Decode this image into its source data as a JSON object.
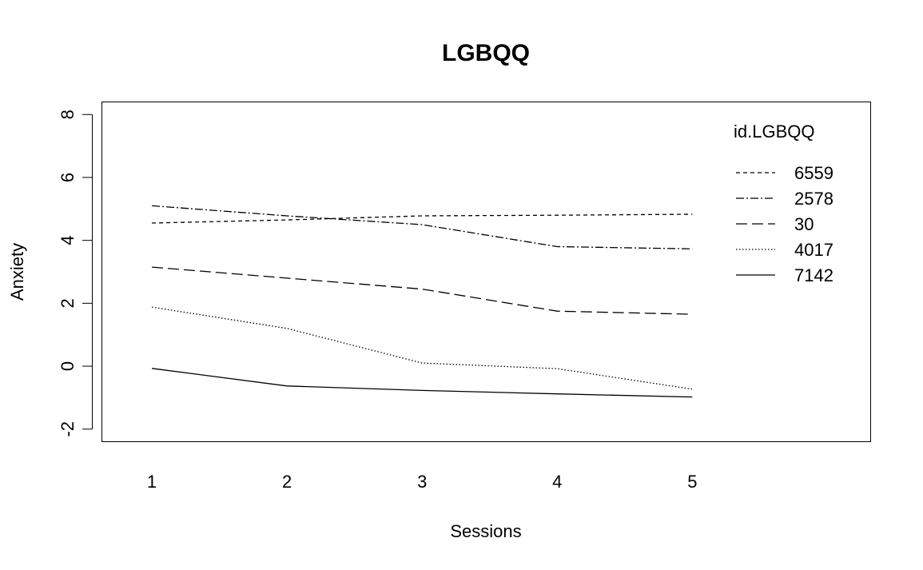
{
  "chart_data": {
    "type": "line",
    "title": "LGBQQ",
    "xlabel": "Sessions",
    "ylabel": "Anxiety",
    "x": [
      1,
      2,
      3,
      4,
      5
    ],
    "x_tick_labels": [
      "1",
      "2",
      "3",
      "4",
      "5"
    ],
    "y_ticks": [
      -2,
      0,
      2,
      4,
      6,
      8
    ],
    "y_tick_labels": [
      "-2",
      "0",
      "2",
      "4",
      "6",
      "8"
    ],
    "xlim": [
      0.63,
      6.32
    ],
    "ylim": [
      -2.4,
      8.4
    ],
    "grid": false,
    "legend": {
      "title": "id.LGBQQ",
      "position": "top-right"
    },
    "series": [
      {
        "name": "6559",
        "dash": "5,4",
        "values": [
          4.55,
          4.65,
          4.78,
          4.8,
          4.83
        ]
      },
      {
        "name": "2578",
        "dash": "10,3,2,3",
        "values": [
          5.1,
          4.78,
          4.5,
          3.8,
          3.73
        ]
      },
      {
        "name": "30",
        "dash": "14,6",
        "values": [
          3.15,
          2.8,
          2.45,
          1.75,
          1.65
        ]
      },
      {
        "name": "4017",
        "dash": "1.5,2.5",
        "values": [
          1.88,
          1.2,
          0.1,
          -0.08,
          -0.73
        ]
      },
      {
        "name": "7142",
        "dash": "",
        "values": [
          -0.07,
          -0.63,
          -0.77,
          -0.88,
          -0.98
        ]
      }
    ]
  }
}
